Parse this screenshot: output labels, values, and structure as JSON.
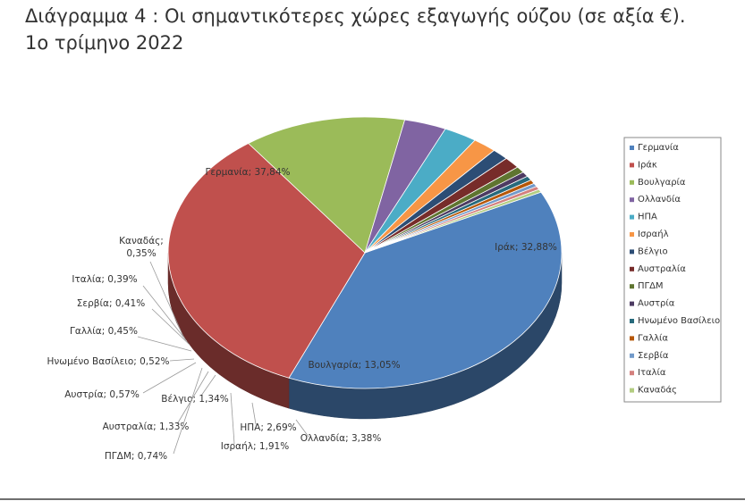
{
  "title_line1": "Διάγραμμα 4 : Οι σημαντικότερες χώρες εξαγωγής ούζου (σε αξία €).",
  "title_line2": "1ο τρίμηνο 2022",
  "chart_data": {
    "type": "pie",
    "title": "",
    "legend_position": "right",
    "slices": [
      {
        "name": "Γερμανία",
        "value": 37.84,
        "label": "Γερμανία; 37,84%",
        "color": "#4f81bd"
      },
      {
        "name": "Ιράκ",
        "value": 32.88,
        "label": "Ιράκ; 32,88%",
        "color": "#c0504d"
      },
      {
        "name": "Βουλγαρία",
        "value": 13.05,
        "label": "Βουλγαρία; 13,05%",
        "color": "#9bbb59"
      },
      {
        "name": "Ολλανδία",
        "value": 3.38,
        "label": "Ολλανδία; 3,38%",
        "color": "#8064a2"
      },
      {
        "name": "ΗΠΑ",
        "value": 2.69,
        "label": "ΗΠΑ; 2,69%",
        "color": "#4bacc6"
      },
      {
        "name": "Ισραήλ",
        "value": 1.91,
        "label": "Ισραήλ; 1,91%",
        "color": "#f79646"
      },
      {
        "name": "Βέλγιο",
        "value": 1.34,
        "label": "Βέλγιο; 1,34%",
        "color": "#2c4d75"
      },
      {
        "name": "Αυστραλία",
        "value": 1.33,
        "label": "Αυστραλία; 1,33%",
        "color": "#772c2a"
      },
      {
        "name": "ΠΓΔΜ",
        "value": 0.74,
        "label": "ΠΓΔΜ; 0,74%",
        "color": "#5f7530"
      },
      {
        "name": "Αυστρία",
        "value": 0.57,
        "label": "Αυστρία; 0,57%",
        "color": "#4d3b62"
      },
      {
        "name": "Ηνωμένο Βασίλειο",
        "value": 0.52,
        "label": "Ηνωμένο Βασίλειο; 0,52%",
        "color": "#276a7c"
      },
      {
        "name": "Γαλλία",
        "value": 0.45,
        "label": "Γαλλία; 0,45%",
        "color": "#b65708"
      },
      {
        "name": "Σερβία",
        "value": 0.41,
        "label": "Σερβία; 0,41%",
        "color": "#729aca"
      },
      {
        "name": "Ιταλία",
        "value": 0.39,
        "label": "Ιταλία; 0,39%",
        "color": "#d4807e"
      },
      {
        "name": "Καναδάς",
        "value": 0.35,
        "label": "Καναδάς;\n0,35%",
        "color": "#b3cd81"
      }
    ]
  }
}
